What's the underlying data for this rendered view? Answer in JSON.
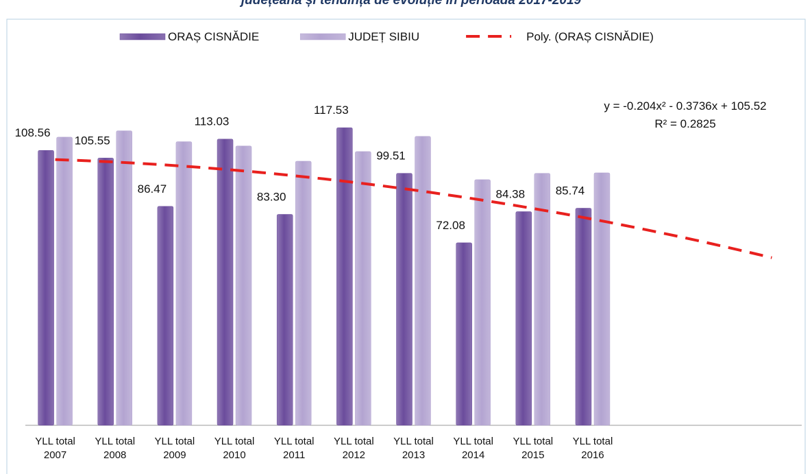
{
  "chart_data": {
    "type": "bar",
    "title": "județeană și tendința de evoluție în perioada 2017-2019",
    "categories": [
      "YLL total 2007",
      "YLL total 2008",
      "YLL total 2009",
      "YLL total 2010",
      "YLL total 2011",
      "YLL total 2012",
      "YLL total 2013",
      "YLL total 2014",
      "YLL total 2015",
      "YLL total 2016",
      null,
      null,
      null
    ],
    "series": [
      {
        "name": "ORAȘ CISNĂDIE",
        "color": "#6b4c9c",
        "values": [
          108.56,
          105.55,
          86.47,
          113.03,
          83.3,
          117.53,
          99.51,
          72.08,
          84.38,
          85.74,
          null,
          null,
          null
        ],
        "value_labels": [
          "108.56",
          "105.55",
          "86.47",
          "113.03",
          "83.30",
          "117.53",
          "99.51",
          "72.08",
          "84.38",
          "85.74",
          null,
          null,
          null
        ]
      },
      {
        "name": "JUDEȚ SIBIU",
        "color": "#b3a4d1",
        "values": [
          113.8,
          116.3,
          112,
          110.3,
          104.3,
          108.1,
          114.1,
          97,
          99.5,
          99.7,
          null,
          null,
          null
        ]
      }
    ],
    "trendline": {
      "name": "Poly. (ORAȘ CISNĂDIE)",
      "color": "#e8201e",
      "coefficients": [
        -0.204,
        -0.3736,
        105.52
      ],
      "equation": "y = -0.204x² - 0.3736x + 105.52",
      "r_squared": "R² = 0.2825"
    },
    "ylim": [
      0,
      120
    ],
    "legend": "top"
  }
}
